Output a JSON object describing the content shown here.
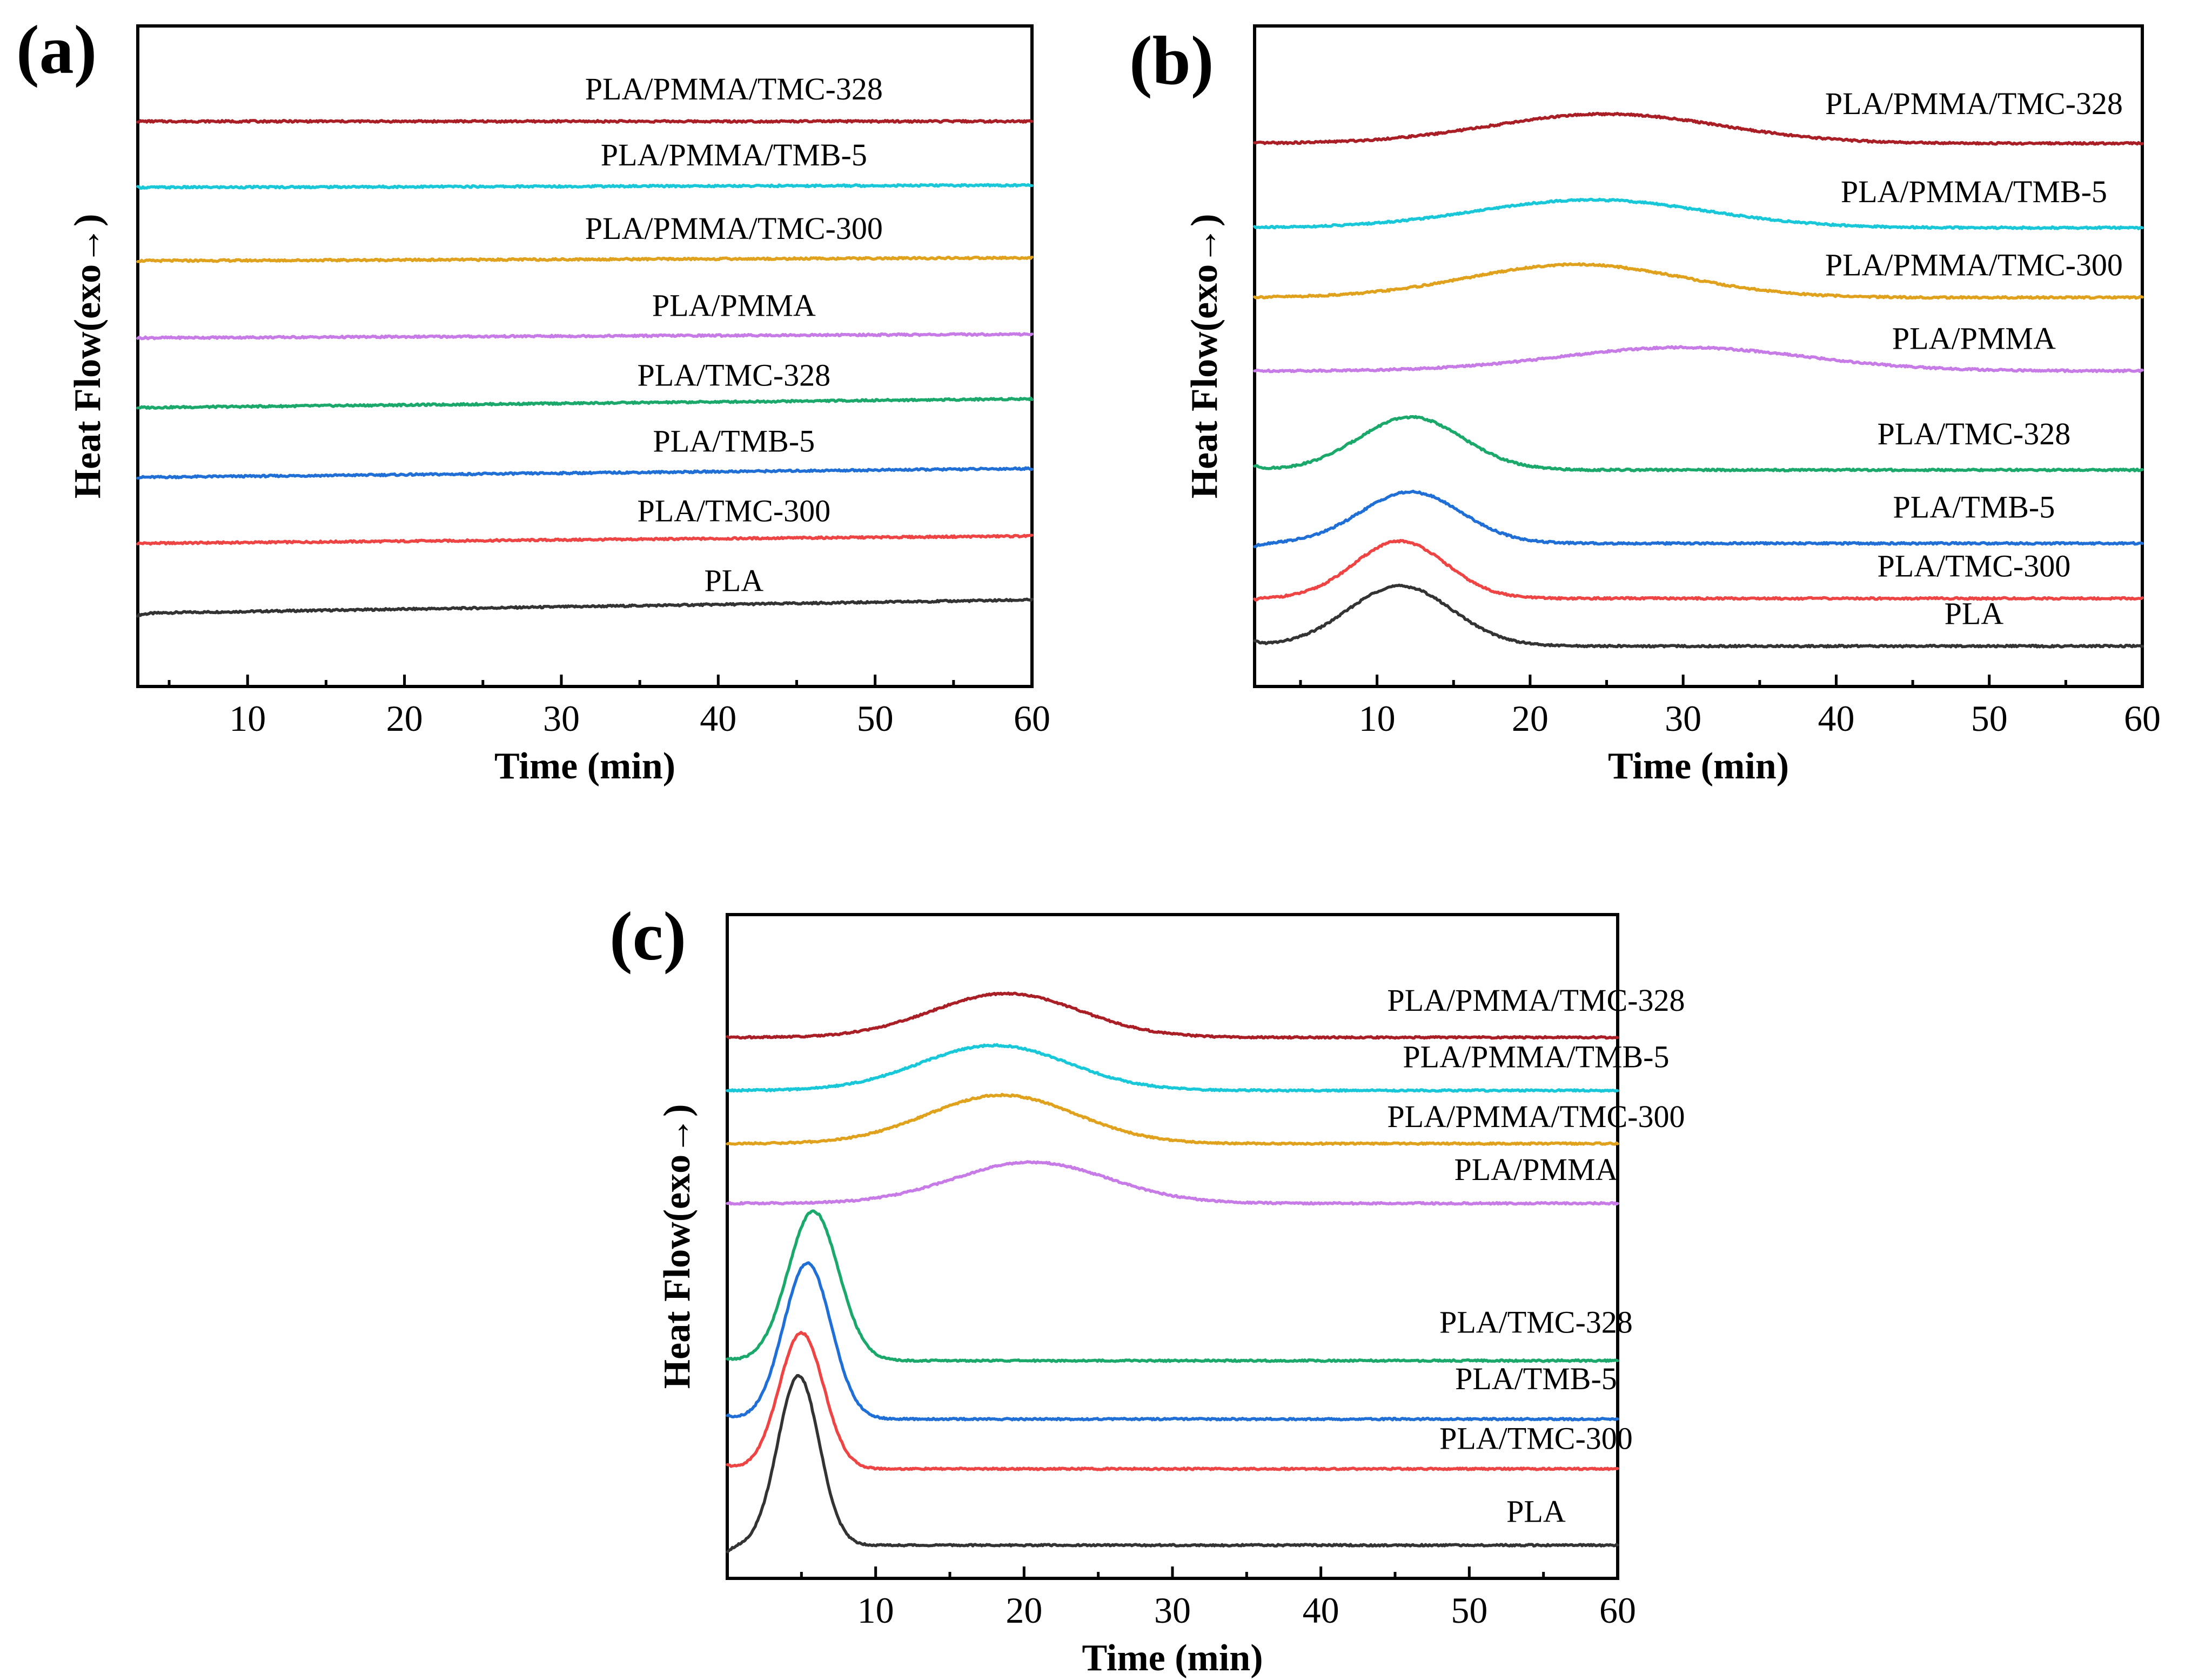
{
  "figure": {
    "xlabel": "Time (min)",
    "ylabel": "Heat Flow(exo→)",
    "xticks": [
      10,
      20,
      30,
      40,
      50,
      60
    ],
    "colors": {
      "PLA": "#333333",
      "PLA/TMC-300": "#ee4444",
      "PLA/TMB-5": "#1f6fd6",
      "PLA/TMC-328": "#1aa86b",
      "PLA/PMMA": "#c77be6",
      "PLA/PMMA/TMC-300": "#e0a11c",
      "PLA/PMMA/TMB-5": "#19c8d8",
      "PLA/PMMA/TMC-328": "#aa1e26"
    }
  },
  "chart_data": [
    {
      "panel": "(a)",
      "type": "line",
      "xlabel": "Time (min)",
      "ylabel": "Heat Flow(exo→)",
      "xlim": [
        3,
        60
      ],
      "ylim": [
        0,
        9
      ],
      "series": [
        {
          "name": "PLA",
          "baseline": 1.0,
          "start": 0.97,
          "drift": 0.18,
          "peaks": []
        },
        {
          "name": "PLA/TMC-300",
          "baseline": 1.95,
          "start": 1.95,
          "drift": 0.1,
          "peaks": []
        },
        {
          "name": "PLA/TMB-5",
          "baseline": 2.85,
          "start": 2.85,
          "drift": 0.12,
          "peaks": []
        },
        {
          "name": "PLA/TMC-328",
          "baseline": 3.8,
          "start": 3.8,
          "drift": 0.12,
          "peaks": []
        },
        {
          "name": "PLA/PMMA",
          "baseline": 4.75,
          "start": 4.75,
          "drift": 0.05,
          "peaks": []
        },
        {
          "name": "PLA/PMMA/TMC-300",
          "baseline": 5.8,
          "start": 5.8,
          "drift": 0.04,
          "peaks": []
        },
        {
          "name": "PLA/PMMA/TMB-5",
          "baseline": 6.8,
          "start": 6.8,
          "drift": 0.03,
          "peaks": []
        },
        {
          "name": "PLA/PMMA/TMC-328",
          "baseline": 7.7,
          "start": 7.7,
          "drift": 0.0,
          "peaks": []
        }
      ],
      "labels": [
        {
          "text": "PLA",
          "x": 41.0,
          "y": 1.3
        },
        {
          "text": "PLA/TMC-300",
          "x": 41.0,
          "y": 2.25
        },
        {
          "text": "PLA/TMB-5",
          "x": 41.0,
          "y": 3.2
        },
        {
          "text": "PLA/TMC-328",
          "x": 41.0,
          "y": 4.1
        },
        {
          "text": "PLA/PMMA",
          "x": 41.0,
          "y": 5.05
        },
        {
          "text": "PLA/PMMA/TMC-300",
          "x": 41.0,
          "y": 6.1
        },
        {
          "text": "PLA/PMMA/TMB-5",
          "x": 41.0,
          "y": 7.1
        },
        {
          "text": "PLA/PMMA/TMC-328",
          "x": 41.0,
          "y": 8.0
        }
      ]
    },
    {
      "panel": "(b)",
      "type": "line",
      "xlabel": "Time (min)",
      "ylabel": "Heat Flow(exo→)",
      "xlim": [
        2,
        60
      ],
      "ylim": [
        0,
        9
      ],
      "series": [
        {
          "name": "PLA",
          "baseline": 0.55,
          "start": 0.6,
          "drift": 0.0,
          "peaks": [
            {
              "center": 11.5,
              "width": 3.4,
              "height": 0.82
            }
          ]
        },
        {
          "name": "PLA/TMC-300",
          "baseline": 1.2,
          "start": 1.18,
          "drift": 0.0,
          "peaks": [
            {
              "center": 11.5,
              "width": 3.0,
              "height": 0.78
            }
          ]
        },
        {
          "name": "PLA/TMB-5",
          "baseline": 1.95,
          "start": 1.9,
          "drift": 0.0,
          "peaks": [
            {
              "center": 12.2,
              "width": 3.3,
              "height": 0.7
            }
          ]
        },
        {
          "name": "PLA/TMC-328",
          "baseline": 2.95,
          "start": 3.0,
          "drift": 0.0,
          "peaks": [
            {
              "center": 12.2,
              "width": 3.4,
              "height": 0.72
            }
          ]
        },
        {
          "name": "PLA/PMMA",
          "baseline": 4.3,
          "start": 4.3,
          "drift": 0.0,
          "peaks": [
            {
              "center": 30.0,
              "width": 8.0,
              "height": 0.32
            }
          ]
        },
        {
          "name": "PLA/PMMA/TMC-300",
          "baseline": 5.3,
          "start": 5.3,
          "drift": 0.0,
          "peaks": [
            {
              "center": 23.0,
              "width": 7.0,
              "height": 0.45
            }
          ]
        },
        {
          "name": "PLA/PMMA/TMB-5",
          "baseline": 6.25,
          "start": 6.25,
          "drift": 0.0,
          "peaks": [
            {
              "center": 24.0,
              "width": 7.5,
              "height": 0.38
            }
          ]
        },
        {
          "name": "PLA/PMMA/TMC-328",
          "baseline": 7.4,
          "start": 7.4,
          "drift": 0.0,
          "peaks": [
            {
              "center": 25.0,
              "width": 7.5,
              "height": 0.4
            }
          ]
        }
      ],
      "labels": [
        {
          "text": "PLA",
          "x": 49.0,
          "y": 0.85
        },
        {
          "text": "PLA/TMC-300",
          "x": 49.0,
          "y": 1.5
        },
        {
          "text": "PLA/TMB-5",
          "x": 49.0,
          "y": 2.3
        },
        {
          "text": "PLA/TMC-328",
          "x": 49.0,
          "y": 3.3
        },
        {
          "text": "PLA/PMMA",
          "x": 49.0,
          "y": 4.6
        },
        {
          "text": "PLA/PMMA/TMC-300",
          "x": 49.0,
          "y": 5.6
        },
        {
          "text": "PLA/PMMA/TMB-5",
          "x": 49.0,
          "y": 6.6
        },
        {
          "text": "PLA/PMMA/TMC-328",
          "x": 49.0,
          "y": 7.8
        }
      ]
    },
    {
      "panel": "(c)",
      "type": "line",
      "xlabel": "Time (min)",
      "ylabel": "Heat Flow(exo→)",
      "xlim": [
        0,
        60
      ],
      "ylim": [
        0,
        10
      ],
      "series": [
        {
          "name": "PLA",
          "baseline": 0.5,
          "start": 0.4,
          "drift": 0.0,
          "peaks": [
            {
              "center": 4.8,
              "width": 1.4,
              "height": 2.55
            }
          ]
        },
        {
          "name": "PLA/TMC-300",
          "baseline": 1.65,
          "start": 1.7,
          "drift": 0.0,
          "peaks": [
            {
              "center": 5.0,
              "width": 1.5,
              "height": 2.05
            }
          ]
        },
        {
          "name": "PLA/TMB-5",
          "baseline": 2.4,
          "start": 2.45,
          "drift": 0.0,
          "peaks": [
            {
              "center": 5.4,
              "width": 1.6,
              "height": 2.35
            }
          ]
        },
        {
          "name": "PLA/TMC-328",
          "baseline": 3.28,
          "start": 3.3,
          "drift": 0.0,
          "peaks": [
            {
              "center": 5.8,
              "width": 1.7,
              "height": 2.25
            }
          ]
        },
        {
          "name": "PLA/PMMA",
          "baseline": 5.65,
          "start": 5.65,
          "drift": 0.0,
          "peaks": [
            {
              "center": 20.5,
              "width": 5.2,
              "height": 0.62
            }
          ]
        },
        {
          "name": "PLA/PMMA/TMC-300",
          "baseline": 6.55,
          "start": 6.55,
          "drift": 0.0,
          "peaks": [
            {
              "center": 18.5,
              "width": 5.0,
              "height": 0.73
            }
          ]
        },
        {
          "name": "PLA/PMMA/TMB-5",
          "baseline": 7.35,
          "start": 7.35,
          "drift": 0.0,
          "peaks": [
            {
              "center": 18.0,
              "width": 5.0,
              "height": 0.68
            }
          ]
        },
        {
          "name": "PLA/PMMA/TMC-328",
          "baseline": 8.15,
          "start": 8.15,
          "drift": 0.0,
          "peaks": [
            {
              "center": 18.8,
              "width": 5.0,
              "height": 0.66
            }
          ]
        }
      ],
      "labels": [
        {
          "text": "PLA",
          "x": 54.5,
          "y": 0.85
        },
        {
          "text": "PLA/TMC-300",
          "x": 54.5,
          "y": 1.95
        },
        {
          "text": "PLA/TMB-5",
          "x": 54.5,
          "y": 2.85
        },
        {
          "text": "PLA/TMC-328",
          "x": 54.5,
          "y": 3.7
        },
        {
          "text": "PLA/PMMA",
          "x": 54.5,
          "y": 6.0
        },
        {
          "text": "PLA/PMMA/TMC-300",
          "x": 54.5,
          "y": 6.8
        },
        {
          "text": "PLA/PMMA/TMB-5",
          "x": 54.5,
          "y": 7.7
        },
        {
          "text": "PLA/PMMA/TMC-328",
          "x": 54.5,
          "y": 8.55
        }
      ]
    }
  ]
}
